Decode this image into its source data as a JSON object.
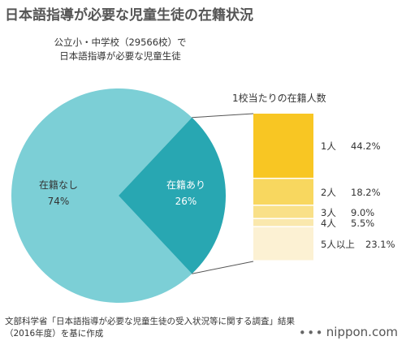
{
  "title": "日本語指導が必要な児童生徒の在籍状況",
  "colors": {
    "pie_without": "#7ccfd6",
    "pie_with": "#28a7b2",
    "pie_text_without": "#333333",
    "pie_text_with": "#ffffff",
    "connector": "#555555",
    "bars": [
      "#f8c623",
      "#f8d75f",
      "#f9e088",
      "#fae8ad",
      "#fcf1d3"
    ]
  },
  "pie_caption": {
    "line1": "公立小・中学校（29566校）で",
    "line2": "日本語指導が必要な児童生徒"
  },
  "bar_caption": "1校当たりの在籍人数",
  "chart_data": [
    {
      "type": "pie",
      "title": "",
      "slices": [
        {
          "label": "在籍なし",
          "value": 74,
          "value_label": "74%"
        },
        {
          "label": "在籍あり",
          "value": 26,
          "value_label": "26%"
        }
      ]
    },
    {
      "type": "bar",
      "orientation": "stacked-vertical",
      "title": "1校当たりの在籍人数",
      "unit": "%",
      "segments": [
        {
          "category": "1人",
          "value": 44.2,
          "value_label": "44.2%"
        },
        {
          "category": "2人",
          "value": 18.2,
          "value_label": "18.2%"
        },
        {
          "category": "3人",
          "value": 9.0,
          "value_label": "9.0%"
        },
        {
          "category": "4人",
          "value": 5.5,
          "value_label": "5.5%"
        },
        {
          "category": "5人以上",
          "value": 23.1,
          "value_label": "23.1%"
        }
      ]
    }
  ],
  "source": "文部科学省「日本語指導が必要な児童生徒の受入状況等に関する調査」結果（2016年度）を基に作成",
  "brand": {
    "dots": "∙∙∙",
    "name": "nippon.com"
  }
}
